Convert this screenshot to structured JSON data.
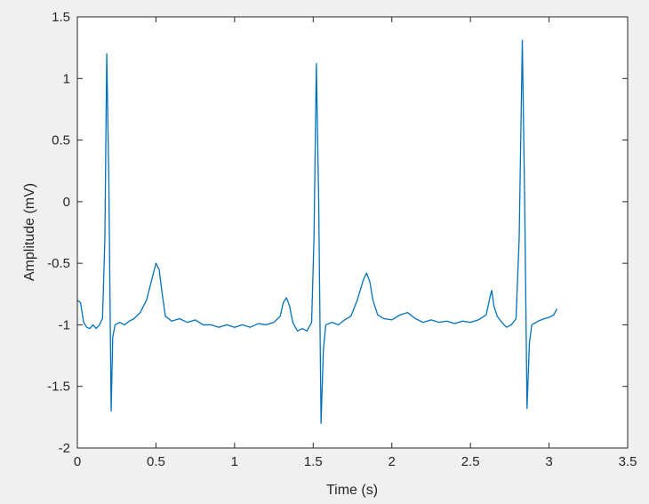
{
  "chart_data": {
    "type": "line",
    "xlabel": "Time (s)",
    "ylabel": "Amplitude (mV)",
    "xlim": [
      0,
      3.5
    ],
    "xticks": [
      0,
      0.5,
      1,
      1.5,
      2,
      2.5,
      3,
      3.5
    ],
    "ylim": [
      -2,
      1.5
    ],
    "yticks": [
      -2,
      -1.5,
      -1,
      -0.5,
      0,
      0.5,
      1,
      1.5
    ],
    "series": [
      {
        "color": "#0072bd",
        "x": [
          0,
          0.02,
          0.04,
          0.06,
          0.08,
          0.1,
          0.12,
          0.14,
          0.16,
          0.175,
          0.187,
          0.2,
          0.215,
          0.225,
          0.24,
          0.27,
          0.3,
          0.33,
          0.36,
          0.4,
          0.44,
          0.47,
          0.5,
          0.52,
          0.54,
          0.56,
          0.6,
          0.65,
          0.7,
          0.75,
          0.8,
          0.85,
          0.9,
          0.95,
          1.0,
          1.05,
          1.1,
          1.15,
          1.2,
          1.25,
          1.29,
          1.31,
          1.33,
          1.35,
          1.37,
          1.4,
          1.43,
          1.46,
          1.49,
          1.505,
          1.52,
          1.535,
          1.55,
          1.565,
          1.58,
          1.62,
          1.66,
          1.7,
          1.74,
          1.78,
          1.82,
          1.84,
          1.86,
          1.88,
          1.91,
          1.95,
          2.0,
          2.05,
          2.1,
          2.15,
          2.2,
          2.25,
          2.3,
          2.35,
          2.4,
          2.45,
          2.5,
          2.55,
          2.6,
          2.62,
          2.635,
          2.65,
          2.67,
          2.7,
          2.73,
          2.76,
          2.79,
          2.81,
          2.83,
          2.845,
          2.86,
          2.875,
          2.89,
          2.93,
          2.97,
          3.0,
          3.03,
          3.05
        ],
        "values": [
          -0.8,
          -0.82,
          -0.98,
          -1.02,
          -1.03,
          -1.0,
          -1.03,
          -1.0,
          -0.95,
          -0.3,
          1.2,
          0.2,
          -1.7,
          -1.1,
          -1.0,
          -0.98,
          -1.0,
          -0.97,
          -0.95,
          -0.9,
          -0.8,
          -0.65,
          -0.5,
          -0.55,
          -0.75,
          -0.93,
          -0.97,
          -0.95,
          -0.98,
          -0.96,
          -1.0,
          -1.0,
          -1.02,
          -1.0,
          -1.02,
          -1.0,
          -1.02,
          -0.99,
          -1.0,
          -0.98,
          -0.93,
          -0.82,
          -0.78,
          -0.85,
          -0.98,
          -1.05,
          -1.03,
          -1.05,
          -0.98,
          -0.3,
          1.12,
          0.0,
          -1.8,
          -1.2,
          -1.0,
          -0.98,
          -1.0,
          -0.96,
          -0.93,
          -0.8,
          -0.63,
          -0.58,
          -0.65,
          -0.8,
          -0.92,
          -0.95,
          -0.96,
          -0.92,
          -0.9,
          -0.95,
          -0.98,
          -0.96,
          -0.98,
          -0.97,
          -0.99,
          -0.97,
          -0.98,
          -0.96,
          -0.92,
          -0.8,
          -0.72,
          -0.85,
          -0.93,
          -0.98,
          -1.02,
          -1.0,
          -0.95,
          -0.3,
          1.31,
          0.0,
          -1.68,
          -1.15,
          -1.0,
          -0.97,
          -0.95,
          -0.94,
          -0.92,
          -0.87
        ]
      }
    ]
  }
}
